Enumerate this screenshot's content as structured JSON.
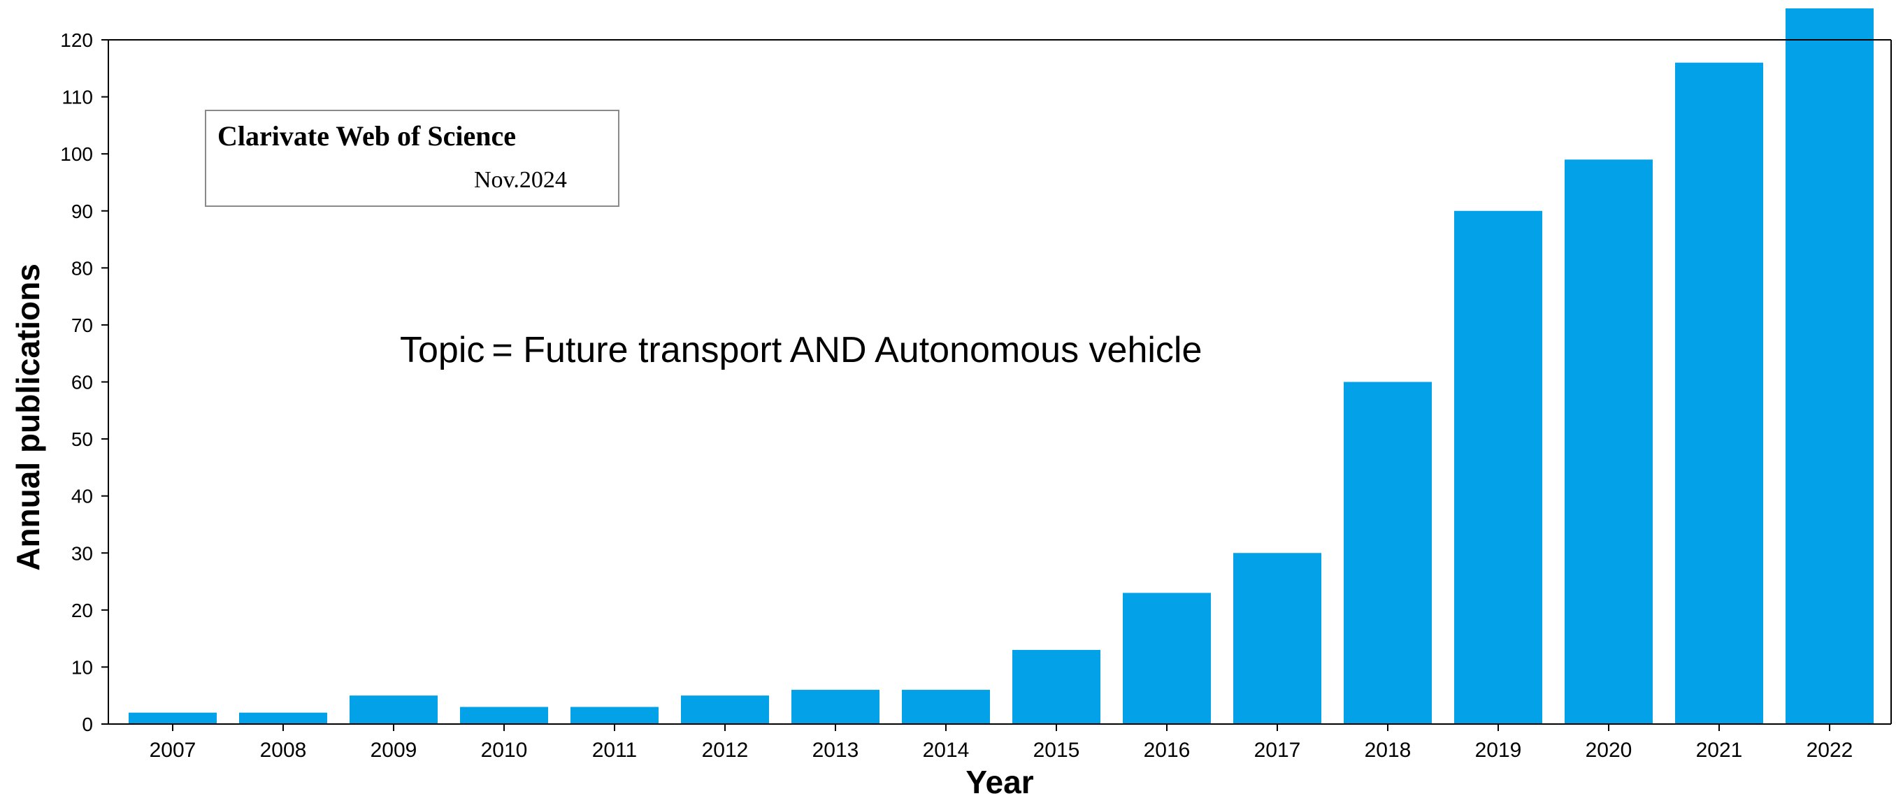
{
  "chart_data": {
    "type": "bar",
    "xlabel": "Year",
    "ylabel": "Annual publications",
    "categories": [
      "2007",
      "2008",
      "2009",
      "2010",
      "2011",
      "2012",
      "2013",
      "2014",
      "2015",
      "2016",
      "2017",
      "2018",
      "2019",
      "2020",
      "2021",
      "2022"
    ],
    "values": [
      2,
      2,
      5,
      3,
      3,
      5,
      6,
      6,
      13,
      23,
      30,
      60,
      90,
      99,
      116,
      126
    ],
    "ylim": [
      0,
      120
    ],
    "yticks": [
      0,
      10,
      20,
      30,
      40,
      50,
      60,
      70,
      80,
      90,
      100,
      110,
      120
    ],
    "grid": false,
    "bar_color": "#02A1E8",
    "source_box": {
      "title": "Clarivate Web of Science",
      "date": "Nov.2024"
    },
    "annotation": {
      "prefix": "Topic",
      "text": "= Future transport  AND Autonomous vehicle"
    }
  }
}
